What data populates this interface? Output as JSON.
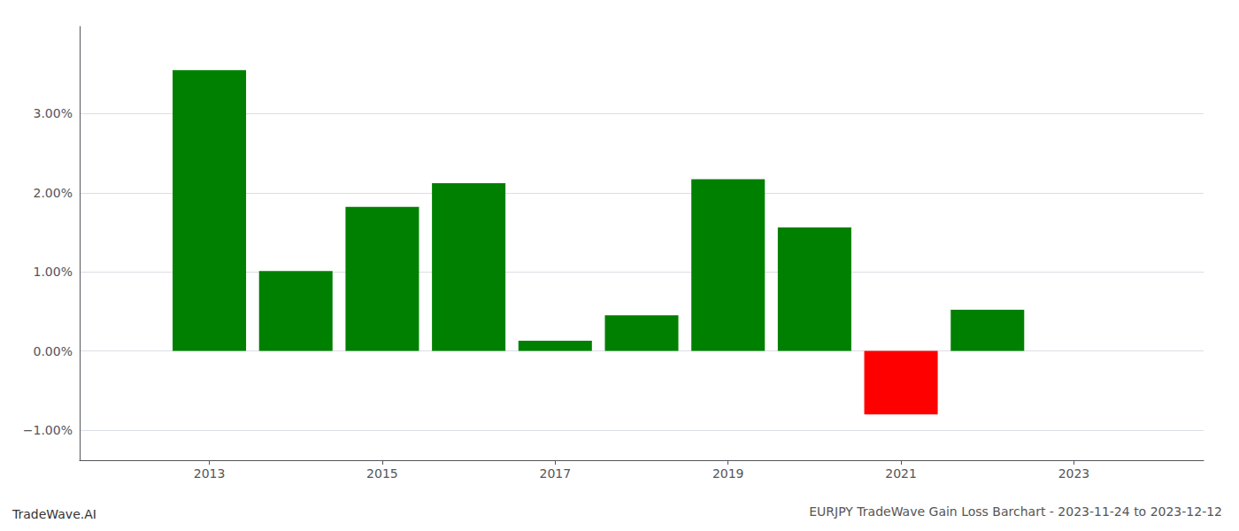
{
  "chart_data": {
    "type": "bar",
    "title": "EURJPY TradeWave Gain Loss Barchart - 2023-11-24 to 2023-12-12",
    "annotations": [
      "TradeWave.AI"
    ],
    "x": [
      2013,
      2014,
      2015,
      2016,
      2017,
      2018,
      2019,
      2020,
      2021,
      2022
    ],
    "values": [
      0.0355,
      0.0101,
      0.0182,
      0.0212,
      0.0013,
      0.0045,
      0.0217,
      0.0156,
      -0.008,
      0.0052
    ],
    "colors": [
      "#008000",
      "#008000",
      "#008000",
      "#008000",
      "#008000",
      "#008000",
      "#008000",
      "#008000",
      "#ff0000",
      "#008000"
    ],
    "xlim": [
      2011.5,
      2024.5
    ],
    "xticks": [
      2013,
      2015,
      2017,
      2019,
      2021,
      2023
    ],
    "ylim": [
      -0.0138,
      0.041
    ],
    "yticks": [
      {
        "value": -0.01,
        "label": "−1.00%"
      },
      {
        "value": 0.0,
        "label": "0.00%"
      },
      {
        "value": 0.01,
        "label": "1.00%"
      },
      {
        "value": 0.02,
        "label": "2.00%"
      },
      {
        "value": 0.03,
        "label": "3.00%"
      }
    ],
    "grid": true
  }
}
